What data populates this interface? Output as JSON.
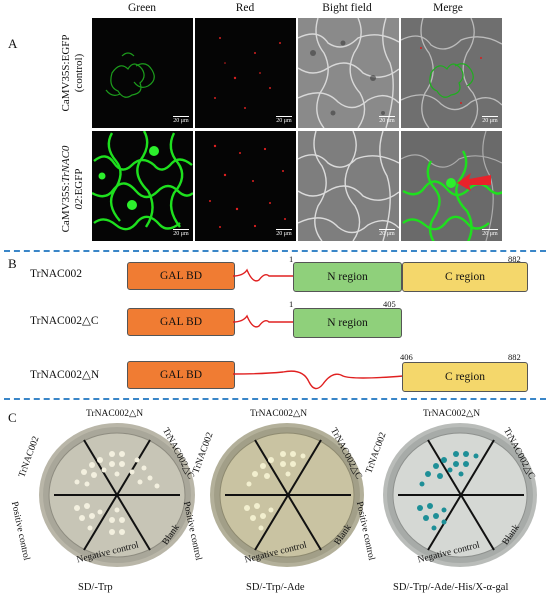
{
  "panel_a": {
    "letter": "A",
    "column_headers": [
      "Green",
      "Red",
      "Bight field",
      "Merge"
    ],
    "rows": [
      {
        "label_line1": "CaMV35S:EGFP",
        "label_line2": "(control)"
      },
      {
        "label_line1_prefix": "CaMV35S:",
        "label_line1_italic": "TrNAC0",
        "label_line2_italic": "02",
        "label_line2_suffix": ":EGFP"
      }
    ],
    "scale_text": "20 μm",
    "colors": {
      "gfp": "#19d219",
      "rfp": "#e02020",
      "arrow": "#e8222a"
    }
  },
  "panel_b": {
    "letter": "B",
    "constructs": [
      {
        "name": "TrNAC002",
        "gal": "GAL BD",
        "n_label": "N region",
        "c_label": "C region",
        "start": "1",
        "end": "882"
      },
      {
        "name": "TrNAC002△C",
        "gal": "GAL BD",
        "n_label": "N region",
        "start": "1",
        "end": "405"
      },
      {
        "name": "TrNAC002△N",
        "gal": "GAL BD",
        "c_label": "C region",
        "start": "406",
        "end": "882"
      }
    ],
    "colors": {
      "gal": "#f07c33",
      "n": "#8fd07b",
      "c": "#f4d76b",
      "linker": "#e02020"
    }
  },
  "panel_c": {
    "letter": "C",
    "plates": [
      {
        "title": "SD/-Trp",
        "colony": "#f3f0df"
      },
      {
        "title": "SD/-Trp/-Ade",
        "colony": "#f2efcf"
      },
      {
        "title": "SD/-Trp/-Ade/-His/X-α-gal",
        "colony": "#1e8f97"
      }
    ],
    "sectors": {
      "top_left": "TrNAC002",
      "top": "TrNAC002△N",
      "top_right": "TrNAC002△C",
      "bottom_left": "Positive control",
      "bottom": "Negative control",
      "bottom_right": "Blank"
    }
  },
  "divider_color": "#3a86c8"
}
